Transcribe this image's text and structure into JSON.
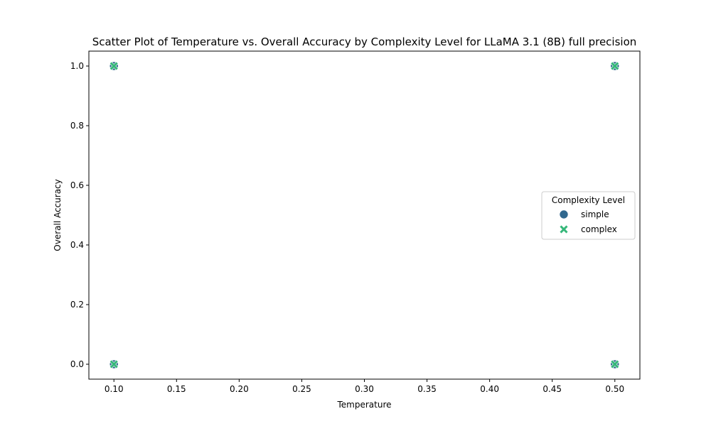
{
  "chart_data": {
    "type": "scatter",
    "title": "Scatter Plot of Temperature vs. Overall Accuracy by Complexity Level for LLaMA 3.1 (8B) full precision",
    "xlabel": "Temperature",
    "ylabel": "Overall Accuracy",
    "xlim": [
      0.08,
      0.52
    ],
    "ylim": [
      -0.05,
      1.05
    ],
    "x_ticks": [
      "0.10",
      "0.15",
      "0.20",
      "0.25",
      "0.30",
      "0.35",
      "0.40",
      "0.45",
      "0.50"
    ],
    "y_ticks": [
      "0.0",
      "0.2",
      "0.4",
      "0.6",
      "0.8",
      "1.0"
    ],
    "grid": false,
    "legend": {
      "title": "Complexity Level",
      "placement": "center-right"
    },
    "series": [
      {
        "name": "simple",
        "marker": "circle",
        "color": "#31688e",
        "points": [
          [
            0.1,
            1.0
          ],
          [
            0.1,
            0.0
          ],
          [
            0.5,
            1.0
          ],
          [
            0.5,
            0.0
          ]
        ]
      },
      {
        "name": "complex",
        "marker": "x",
        "color": "#35b779",
        "points": [
          [
            0.1,
            1.0
          ],
          [
            0.1,
            0.0
          ],
          [
            0.5,
            1.0
          ],
          [
            0.5,
            0.0
          ]
        ]
      }
    ]
  }
}
